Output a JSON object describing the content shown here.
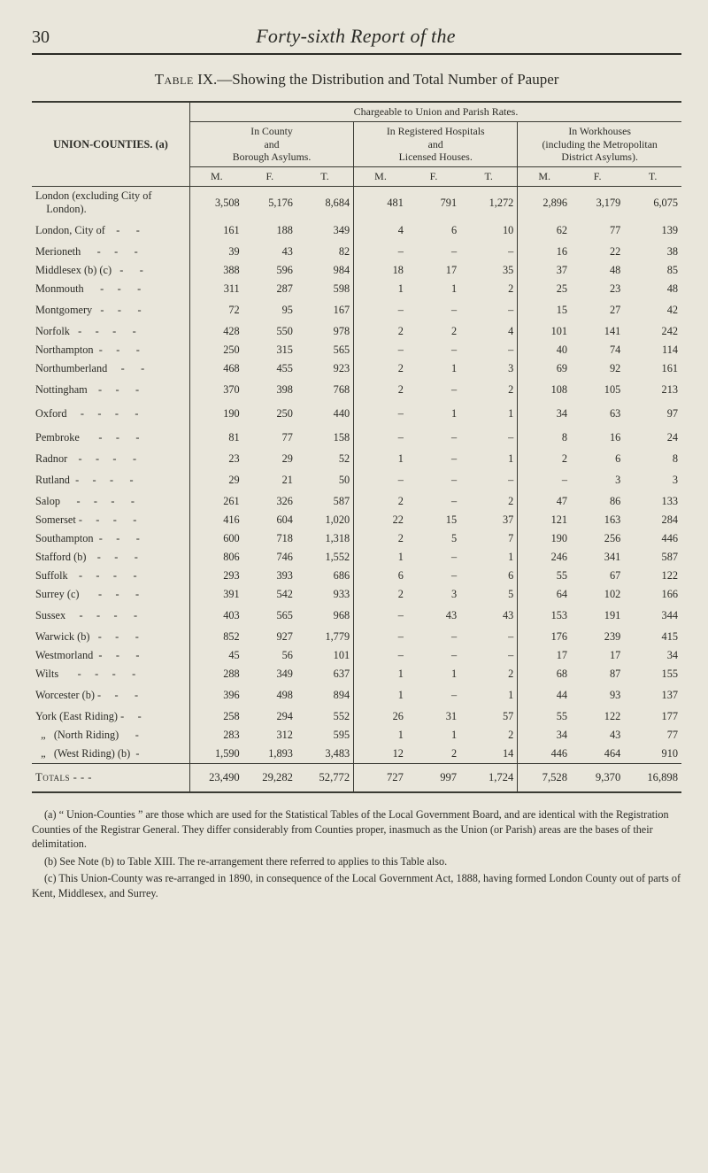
{
  "page_number": "30",
  "running_title": "Forty-sixth Report of the",
  "table_title_sc": "Table",
  "table_title_rest": " IX.—Showing the Distribution and Total Number of Pauper",
  "chargeable_header": "Chargeable to Union and Parish Rates.",
  "union_counties_label": "UNION-COUNTIES. (a)",
  "group_headers": {
    "county": "In County\nand\nBorough Asylums.",
    "registered": "In Registered Hospitals\nand\nLicensed Houses.",
    "workhouses": "In Workhouses\n(including the Metropolitan\nDistrict Asylums)."
  },
  "mft_labels": {
    "m": "M.",
    "f": "F.",
    "t": "T."
  },
  "rows": [
    {
      "label": "London (excluding City of\n    London).",
      "v": [
        "3,508",
        "5,176",
        "8,684",
        "481",
        "791",
        "1,272",
        "2,896",
        "3,179",
        "6,075"
      ],
      "gap_after": false
    },
    {
      "label": "London, City of    -      -",
      "v": [
        "161",
        "188",
        "349",
        "4",
        "6",
        "10",
        "62",
        "77",
        "139"
      ],
      "gap_after": true
    },
    {
      "label": "Merioneth      -     -      -",
      "v": [
        "39",
        "43",
        "82",
        "–",
        "–",
        "–",
        "16",
        "22",
        "38"
      ]
    },
    {
      "label": "Middlesex (b) (c)   -      -",
      "v": [
        "388",
        "596",
        "984",
        "18",
        "17",
        "35",
        "37",
        "48",
        "85"
      ]
    },
    {
      "label": "Monmouth      -     -      -",
      "v": [
        "311",
        "287",
        "598",
        "1",
        "1",
        "2",
        "25",
        "23",
        "48"
      ]
    },
    {
      "label": "Montgomery   -     -      -",
      "v": [
        "72",
        "95",
        "167",
        "–",
        "–",
        "–",
        "15",
        "27",
        "42"
      ],
      "gap_after": true
    },
    {
      "label": "Norfolk   -     -     -      -",
      "v": [
        "428",
        "550",
        "978",
        "2",
        "2",
        "4",
        "101",
        "141",
        "242"
      ]
    },
    {
      "label": "Northampton  -     -      -",
      "v": [
        "250",
        "315",
        "565",
        "–",
        "–",
        "–",
        "40",
        "74",
        "114"
      ]
    },
    {
      "label": "Northumberland     -      -",
      "v": [
        "468",
        "455",
        "923",
        "2",
        "1",
        "3",
        "69",
        "92",
        "161"
      ]
    },
    {
      "label": "Nottingham    -     -      -",
      "v": [
        "370",
        "398",
        "768",
        "2",
        "–",
        "2",
        "108",
        "105",
        "213"
      ],
      "gap_after": true
    },
    {
      "label": "Oxford     -     -     -      -",
      "v": [
        "190",
        "250",
        "440",
        "–",
        "1",
        "1",
        "34",
        "63",
        "97"
      ],
      "gap_after": true
    },
    {
      "label": "Pembroke       -     -      -",
      "v": [
        "81",
        "77",
        "158",
        "–",
        "–",
        "–",
        "8",
        "16",
        "24"
      ],
      "gap_after": true
    },
    {
      "label": "Radnor    -     -     -      -",
      "v": [
        "23",
        "29",
        "52",
        "1",
        "–",
        "1",
        "2",
        "6",
        "8"
      ]
    },
    {
      "label": "Rutland  -     -     -      -",
      "v": [
        "29",
        "21",
        "50",
        "–",
        "–",
        "–",
        "–",
        "3",
        "3"
      ],
      "gap_after": true
    },
    {
      "label": "Salop      -     -     -      -",
      "v": [
        "261",
        "326",
        "587",
        "2",
        "–",
        "2",
        "47",
        "86",
        "133"
      ]
    },
    {
      "label": "Somerset -     -     -      -",
      "v": [
        "416",
        "604",
        "1,020",
        "22",
        "15",
        "37",
        "121",
        "163",
        "284"
      ]
    },
    {
      "label": "Southampton  -     -      -",
      "v": [
        "600",
        "718",
        "1,318",
        "2",
        "5",
        "7",
        "190",
        "256",
        "446"
      ]
    },
    {
      "label": "Stafford (b)    -     -      -",
      "v": [
        "806",
        "746",
        "1,552",
        "1",
        "–",
        "1",
        "246",
        "341",
        "587"
      ]
    },
    {
      "label": "Suffolk    -     -     -      -",
      "v": [
        "293",
        "393",
        "686",
        "6",
        "–",
        "6",
        "55",
        "67",
        "122"
      ]
    },
    {
      "label": "Surrey (c)       -     -      -",
      "v": [
        "391",
        "542",
        "933",
        "2",
        "3",
        "5",
        "64",
        "102",
        "166"
      ]
    },
    {
      "label": "Sussex     -     -     -      -",
      "v": [
        "403",
        "565",
        "968",
        "–",
        "43",
        "43",
        "153",
        "191",
        "344"
      ],
      "gap_after": true
    },
    {
      "label": "Warwick (b)   -     -      -",
      "v": [
        "852",
        "927",
        "1,779",
        "–",
        "–",
        "–",
        "176",
        "239",
        "415"
      ]
    },
    {
      "label": "Westmorland  -     -      -",
      "v": [
        "45",
        "56",
        "101",
        "–",
        "–",
        "–",
        "17",
        "17",
        "34"
      ]
    },
    {
      "label": "Wilts       -     -     -      -",
      "v": [
        "288",
        "349",
        "637",
        "1",
        "1",
        "2",
        "68",
        "87",
        "155"
      ]
    },
    {
      "label": "Worcester (b) -     -      -",
      "v": [
        "396",
        "498",
        "894",
        "1",
        "–",
        "1",
        "44",
        "93",
        "137"
      ],
      "gap_after": true
    },
    {
      "label": "York (East Riding) -     -",
      "v": [
        "258",
        "294",
        "552",
        "26",
        "31",
        "57",
        "55",
        "122",
        "177"
      ]
    },
    {
      "label": "  „   (North Riding)      -",
      "v": [
        "283",
        "312",
        "595",
        "1",
        "1",
        "2",
        "34",
        "43",
        "77"
      ]
    },
    {
      "label": "  „   (West Riding) (b)  -",
      "v": [
        "1,590",
        "1,893",
        "3,483",
        "12",
        "2",
        "14",
        "446",
        "464",
        "910"
      ]
    }
  ],
  "totals": {
    "label": "Totals   -  -  -",
    "v": [
      "23,490",
      "29,282",
      "52,772",
      "727",
      "997",
      "1,724",
      "7,528",
      "9,370",
      "16,898"
    ]
  },
  "footnotes": {
    "a": "(a) “ Union-Counties ” are those which are used for the Statistical Tables of the Local Government Board, and are identical with the Registration Counties of the Registrar General.  They differ considerably from Counties proper, inasmuch as the Union (or Parish) areas are the bases of their delimitation.",
    "b": "(b) See Note (b) to Table XIII.   The re-arrangement there referred to applies to this Table also.",
    "c": "(c) This Union-County was re-arranged in 1890, in consequence of the Local Government Act, 1888, having formed London County out of parts of Kent, Middlesex, and Surrey."
  }
}
